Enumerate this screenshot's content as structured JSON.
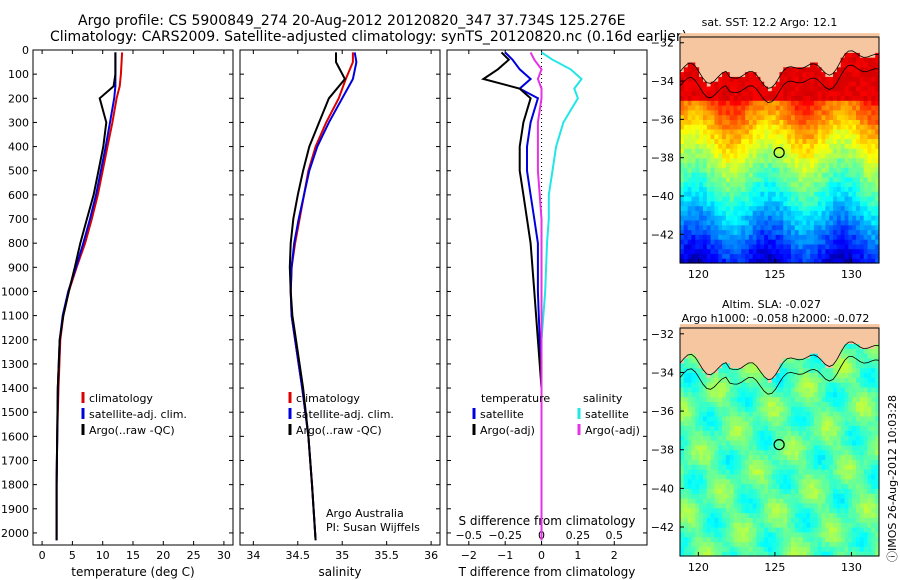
{
  "header": {
    "title_line1": "Argo profile: CS 5900849_274 20-Aug-2012 20120820_347 37.734S 125.276E",
    "title_line2": "Climatology: CARS2009. Satellite-adjusted climatology: synTS_20120820.nc (0.16d earlier)"
  },
  "footer": {
    "side_text": "ⓘIMOS 26-Aug-2012 10:03:28"
  },
  "credit": {
    "line1": "Argo Australia",
    "line2": "PI: Susan Wijffels"
  },
  "colors": {
    "climatology": "#dd0000",
    "satellite": "#0000dd",
    "argo": "#000000",
    "sal_satellite": "#22e6e6",
    "sal_argo": "#e633e6",
    "land": "#f5c6a0"
  },
  "chart_data": [
    {
      "type": "line",
      "xlabel": "temperature (deg C)",
      "ylabel": "",
      "xlim": [
        -1.5,
        31.5
      ],
      "ylim": [
        2050,
        0
      ],
      "y_reversed": true,
      "xticks": [
        0,
        5,
        10,
        15,
        20,
        25,
        30
      ],
      "yticks": [
        0,
        100,
        200,
        300,
        400,
        500,
        600,
        700,
        800,
        900,
        1000,
        1100,
        1200,
        1300,
        1400,
        1500,
        1600,
        1700,
        1800,
        1900,
        2000
      ],
      "legend": [
        "climatology",
        "satellite-adj. clim.",
        "Argo(..raw -QC)"
      ],
      "series": [
        {
          "name": "climatology",
          "color": "#dd0000",
          "x": [
            13.2,
            13,
            12.8,
            12.3,
            11.6,
            10.8,
            10,
            9.2,
            8.2,
            7.1,
            5.7,
            4.4,
            3.5,
            3,
            2.7,
            2.5,
            2.4,
            2.4
          ],
          "y": [
            10,
            100,
            150,
            200,
            300,
            400,
            500,
            600,
            700,
            800,
            900,
            1000,
            1100,
            1200,
            1400,
            1600,
            1800,
            2030
          ]
        },
        {
          "name": "satellite-adj. clim.",
          "color": "#0000dd",
          "x": [
            12.1,
            12.1,
            12.1,
            11.9,
            11.2,
            10.5,
            9.7,
            8.9,
            7.9,
            6.8,
            5.6,
            4.3,
            3.4,
            2.9,
            2.6,
            2.5,
            2.4,
            2.4
          ],
          "y": [
            10,
            100,
            150,
            200,
            300,
            400,
            500,
            600,
            700,
            800,
            900,
            1000,
            1100,
            1200,
            1400,
            1600,
            1800,
            2030
          ]
        },
        {
          "name": "Argo(..raw -QC)",
          "color": "#000000",
          "x": [
            12.1,
            12.1,
            11.8,
            9.5,
            10.6,
            10.1,
            9.3,
            8.5,
            7.4,
            6.3,
            5.4,
            4.4,
            3.5,
            2.9,
            2.6,
            2.5,
            2.4,
            2.4
          ],
          "y": [
            10,
            100,
            150,
            200,
            300,
            400,
            500,
            600,
            700,
            800,
            900,
            1000,
            1100,
            1200,
            1400,
            1600,
            1800,
            2030
          ]
        }
      ]
    },
    {
      "type": "line",
      "xlabel": "salinity",
      "ylabel": "",
      "xlim": [
        33.85,
        36.1
      ],
      "ylim": [
        2050,
        0
      ],
      "y_reversed": true,
      "xticks": [
        34,
        34.5,
        35,
        35.5,
        36
      ],
      "legend": [
        "climatology",
        "satellite-adj. clim.",
        "Argo(..raw -QC)"
      ],
      "series": [
        {
          "name": "climatology",
          "color": "#dd0000",
          "x": [
            35.12,
            35.12,
            35.04,
            34.96,
            34.82,
            34.7,
            34.62,
            34.57,
            34.52,
            34.47,
            34.43,
            34.42,
            34.43,
            34.47,
            34.55,
            34.62,
            34.66,
            34.7
          ],
          "y": [
            10,
            50,
            120,
            200,
            300,
            400,
            500,
            600,
            700,
            800,
            900,
            1000,
            1100,
            1200,
            1400,
            1600,
            1800,
            2030
          ]
        },
        {
          "name": "satellite-adj. clim.",
          "color": "#0000dd",
          "x": [
            35.14,
            35.16,
            35.12,
            35,
            34.85,
            34.72,
            34.63,
            34.57,
            34.51,
            34.46,
            34.43,
            34.42,
            34.43,
            34.47,
            34.55,
            34.62,
            34.66,
            34.7
          ],
          "y": [
            10,
            50,
            120,
            200,
            300,
            400,
            500,
            600,
            700,
            800,
            900,
            1000,
            1100,
            1200,
            1400,
            1600,
            1800,
            2030
          ]
        },
        {
          "name": "Argo(..raw -QC)",
          "color": "#000000",
          "x": [
            34.93,
            34.93,
            35.03,
            34.85,
            34.74,
            34.63,
            34.56,
            34.5,
            34.45,
            34.42,
            34.41,
            34.42,
            34.44,
            34.48,
            34.56,
            34.62,
            34.66,
            34.7
          ],
          "y": [
            10,
            50,
            120,
            200,
            300,
            400,
            500,
            600,
            700,
            800,
            900,
            1000,
            1100,
            1200,
            1400,
            1600,
            1800,
            2030
          ]
        }
      ]
    },
    {
      "type": "line",
      "xlabel": "T difference from climatology",
      "xlabel_top": "S difference from climatology",
      "xlim": [
        -2.6,
        2.9
      ],
      "ylim": [
        2050,
        0
      ],
      "y_reversed": true,
      "xticks": [
        -2,
        -1,
        0,
        1,
        2
      ],
      "xticks_s_labels": [
        "-0.5",
        "-0.25",
        "0",
        "0.25",
        "0.5"
      ],
      "xticks_s_positions": [
        -2,
        -1,
        0,
        1,
        2
      ],
      "legend_headers": [
        "temperature",
        "salinity"
      ],
      "legend": [
        "satellite",
        "Argo(-adj)",
        "satellite",
        "Argo(-adj)"
      ],
      "series": [
        {
          "name": "satellite",
          "quantity": "temperature",
          "color": "#0000dd",
          "x": [
            -1,
            -0.8,
            -0.6,
            -0.3,
            -0.6,
            -0.1,
            -0.3,
            -0.4,
            -0.4,
            -0.3,
            -0.2,
            -0.1,
            -0.1,
            -0.05,
            0,
            0,
            0,
            0
          ],
          "y": [
            10,
            40,
            80,
            120,
            160,
            200,
            300,
            400,
            500,
            600,
            700,
            800,
            1000,
            1200,
            1400,
            1600,
            1800,
            2030
          ]
        },
        {
          "name": "Argo(-adj)",
          "quantity": "temperature",
          "color": "#000000",
          "x": [
            -1.1,
            -0.9,
            -1.2,
            -1.6,
            -0.6,
            -0.3,
            -0.5,
            -0.6,
            -0.6,
            -0.5,
            -0.4,
            -0.3,
            -0.2,
            -0.1,
            0,
            0,
            0,
            0
          ],
          "y": [
            10,
            40,
            80,
            120,
            160,
            200,
            300,
            400,
            500,
            600,
            700,
            800,
            1000,
            1200,
            1400,
            1600,
            1800,
            2030
          ]
        },
        {
          "name": "satellite",
          "quantity": "salinity",
          "color": "#22e6e6",
          "x": [
            0,
            0.3,
            0.8,
            1.1,
            0.9,
            1,
            0.6,
            0.4,
            0.3,
            0.2,
            0.2,
            0.15,
            0.1,
            0,
            0,
            0,
            0,
            0
          ],
          "y": [
            10,
            40,
            80,
            120,
            160,
            200,
            300,
            400,
            500,
            600,
            700,
            800,
            1000,
            1200,
            1400,
            1600,
            1800,
            2030
          ]
        },
        {
          "name": "Argo(-adj)",
          "quantity": "salinity",
          "color": "#e633e6",
          "x": [
            -0.3,
            -0.2,
            0,
            -0.1,
            0,
            0,
            -0.1,
            -0.1,
            -0.1,
            -0.05,
            0,
            0,
            0,
            0,
            0,
            0,
            0,
            0
          ],
          "y": [
            10,
            40,
            80,
            120,
            160,
            200,
            300,
            400,
            500,
            600,
            700,
            800,
            1000,
            1200,
            1400,
            1600,
            1800,
            2030
          ]
        }
      ]
    },
    {
      "type": "heatmap",
      "title": "sat. SST: 12.2  Argo: 12.1",
      "xlim": [
        118.8,
        131.8
      ],
      "ylim": [
        -43.5,
        -31.7
      ],
      "xticks": [
        120,
        125,
        130
      ],
      "yticks": [
        -32,
        -34,
        -36,
        -38,
        -40,
        -42
      ],
      "colormap": "jet",
      "marker": {
        "x": 125.276,
        "y": -37.734
      }
    },
    {
      "type": "heatmap",
      "title": "Altim. SLA: -0.027",
      "subtitle": "Argo h1000: -0.058  h2000: -0.072",
      "xlim": [
        118.8,
        131.8
      ],
      "ylim": [
        -43.5,
        -31.7
      ],
      "xticks": [
        120,
        125,
        130
      ],
      "yticks": [
        -32,
        -34,
        -36,
        -38,
        -40,
        -42
      ],
      "colormap": "jet",
      "marker": {
        "x": 125.276,
        "y": -37.734
      }
    }
  ]
}
